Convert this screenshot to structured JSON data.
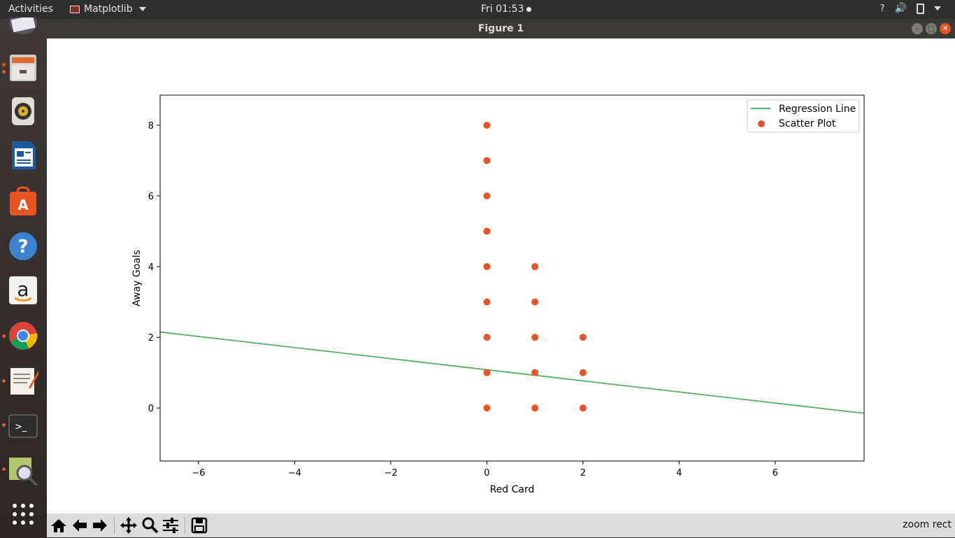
{
  "topbar": {
    "activities": "Activities",
    "app_name": "Matplotlib",
    "clock": "Fri 01:53",
    "help": "?"
  },
  "dock": {
    "items": [
      {
        "name": "mail-icon"
      },
      {
        "name": "files-icon"
      },
      {
        "name": "rhythmbox-icon"
      },
      {
        "name": "writer-icon"
      },
      {
        "name": "software-center-icon"
      },
      {
        "name": "help-icon"
      },
      {
        "name": "amazon-icon"
      },
      {
        "name": "chrome-icon"
      },
      {
        "name": "text-editor-icon"
      },
      {
        "name": "terminal-icon"
      },
      {
        "name": "image-viewer-icon"
      },
      {
        "name": "show-apps-icon"
      }
    ]
  },
  "window": {
    "title": "Figure 1"
  },
  "toolbar": {
    "status": "zoom rect",
    "buttons": [
      "home-icon",
      "back-icon",
      "forward-icon",
      "pan-icon",
      "zoom-icon",
      "configure-subplots-icon",
      "save-icon"
    ]
  },
  "chart_data": {
    "type": "scatter",
    "xlabel": "Red Card",
    "ylabel": "Away Goals",
    "xlim": [
      -6.8,
      7.85
    ],
    "ylim": [
      -1.5,
      8.85
    ],
    "xticks": [
      -6,
      -4,
      -2,
      0,
      2,
      4,
      6
    ],
    "yticks": [
      0,
      2,
      4,
      6,
      8
    ],
    "xtick_labels": [
      "−6",
      "−4",
      "−2",
      "0",
      "2",
      "4",
      "6"
    ],
    "ytick_labels": [
      "0",
      "2",
      "4",
      "6",
      "8"
    ],
    "legend": {
      "placement": "top-right",
      "entries": [
        "Regression Line",
        "Scatter Plot"
      ]
    },
    "series": [
      {
        "name": "Regression Line",
        "kind": "line",
        "color": "#55b065",
        "x": [
          -6.8,
          7.85
        ],
        "y": [
          2.15,
          -0.15
        ]
      },
      {
        "name": "Scatter Plot",
        "kind": "scatter",
        "color": "#e8542a",
        "x": [
          0,
          0,
          0,
          0,
          0,
          0,
          0,
          0,
          0,
          1,
          1,
          1,
          1,
          1,
          2,
          2,
          2
        ],
        "y": [
          8,
          7,
          6,
          5,
          4,
          3,
          2,
          1,
          0,
          4,
          3,
          2,
          1,
          0,
          2,
          1,
          0
        ]
      }
    ]
  }
}
